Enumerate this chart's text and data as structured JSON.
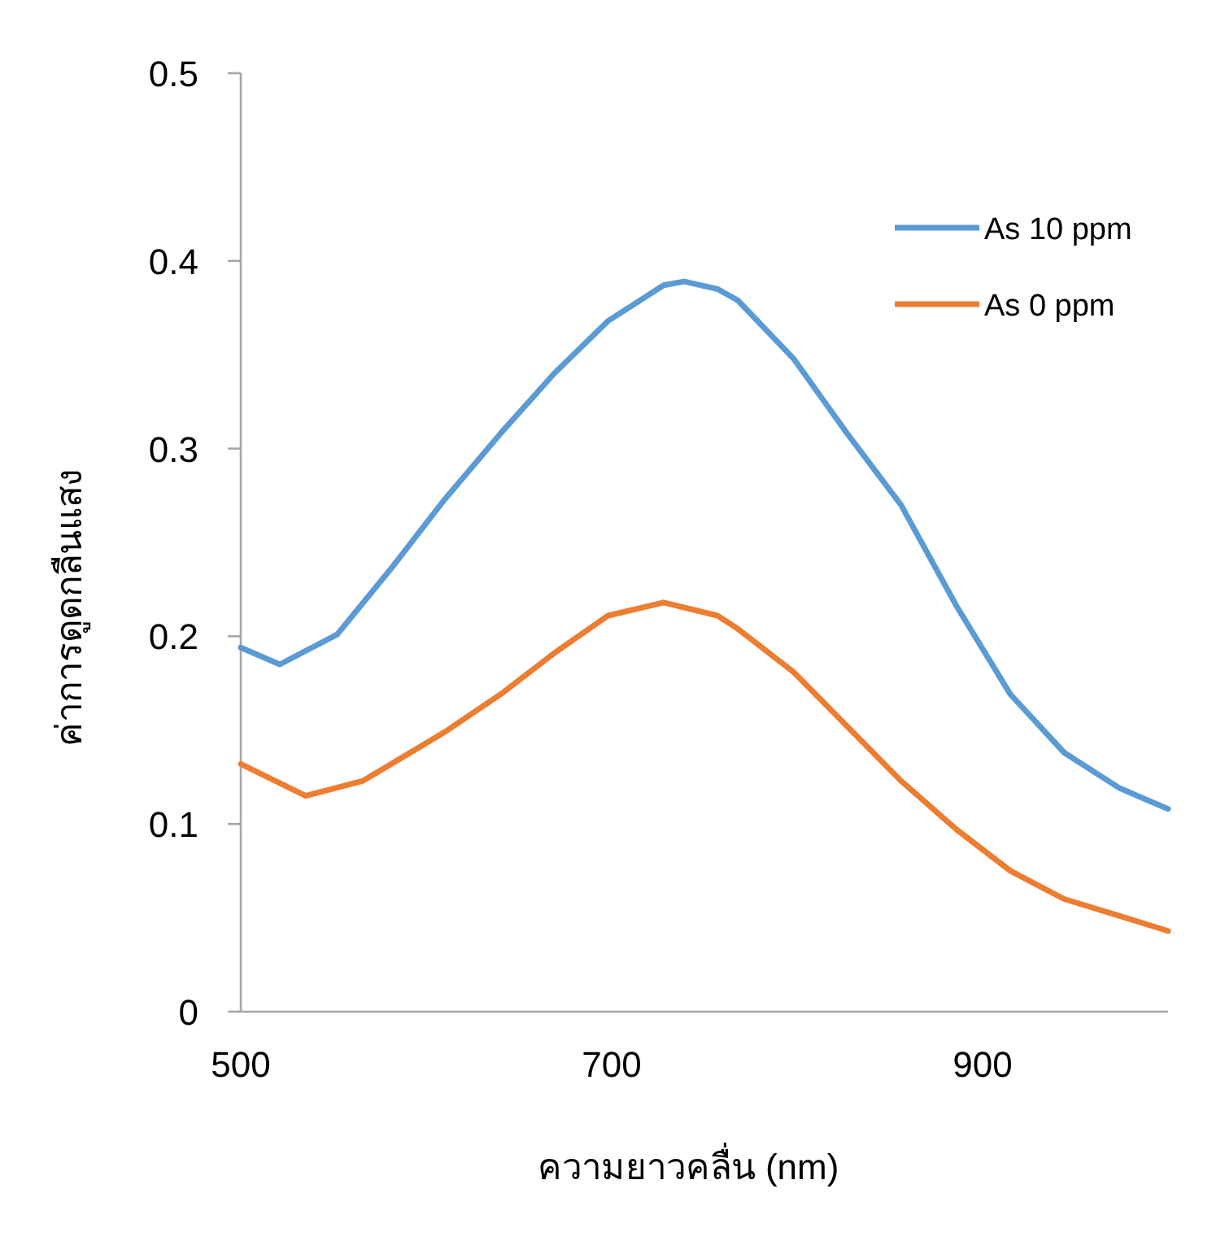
{
  "chart_data": {
    "type": "line",
    "xlabel": "ความยาวคลื่น (nm)",
    "ylabel": "ค่าการดูดกลืนแสง",
    "xlim": [
      500,
      1000
    ],
    "xticks": [
      500,
      700,
      900
    ],
    "ylim": [
      0,
      0.5
    ],
    "yticks": [
      0,
      0.1,
      0.2,
      0.3,
      0.4,
      0.5
    ],
    "grid": false,
    "legend": "top right",
    "marker": "none",
    "line_style": "solid",
    "series": [
      {
        "name": "As 10 ppm",
        "color": "#5b9bd5",
        "x": [
          500,
          521,
          552,
          581,
          610,
          640,
          669,
          698,
          728,
          739,
          757,
          768,
          798,
          827,
          856,
          886,
          915,
          944,
          974,
          1000
        ],
        "values": [
          0.194,
          0.185,
          0.201,
          0.236,
          0.273,
          0.308,
          0.34,
          0.368,
          0.387,
          0.389,
          0.385,
          0.379,
          0.348,
          0.308,
          0.27,
          0.216,
          0.169,
          0.138,
          0.119,
          0.108
        ]
      },
      {
        "name": "As 0 ppm",
        "color": "#ed7d31",
        "x": [
          500,
          535,
          566,
          610,
          640,
          669,
          698,
          728,
          757,
          768,
          798,
          827,
          856,
          886,
          915,
          944,
          974,
          1000
        ],
        "values": [
          0.132,
          0.115,
          0.123,
          0.149,
          0.169,
          0.191,
          0.211,
          0.218,
          0.211,
          0.204,
          0.181,
          0.152,
          0.123,
          0.097,
          0.075,
          0.06,
          0.051,
          0.043
        ]
      }
    ]
  }
}
